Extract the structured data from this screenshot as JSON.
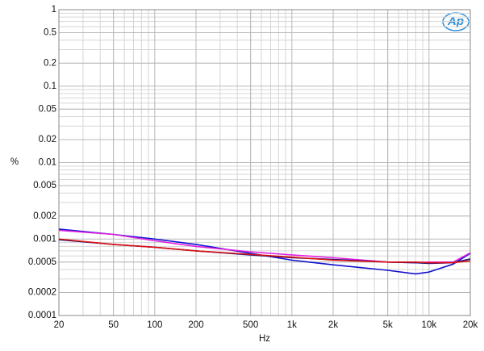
{
  "chart_data": {
    "type": "line",
    "logo": "Ap",
    "xlabel": "Hz",
    "ylabel": "%",
    "xscale": "log",
    "yscale": "log",
    "grid": true,
    "minor_grid": true,
    "xlim": [
      20,
      20000
    ],
    "xticks": [
      20,
      50,
      100,
      200,
      500,
      {
        "value": 1000,
        "label": "1k"
      },
      {
        "value": 2000,
        "label": "2k"
      },
      {
        "value": 5000,
        "label": "5k"
      },
      {
        "value": 10000,
        "label": "10k"
      },
      {
        "value": 20000,
        "label": "20k"
      }
    ],
    "ylim": [
      0.0001,
      1
    ],
    "yticks": [
      1,
      0.5,
      0.2,
      0.1,
      0.05,
      0.02,
      0.01,
      0.005,
      0.002,
      0.001,
      0.0005,
      0.0002,
      0.0001
    ],
    "x": [
      20,
      50,
      100,
      200,
      500,
      1000,
      2000,
      5000,
      8000,
      10000,
      15000,
      20000
    ],
    "series": [
      {
        "color": "#1010d0",
        "values": [
          0.00135,
          0.00115,
          0.001,
          0.00085,
          0.00065,
          0.00053,
          0.00046,
          0.00039,
          0.00035,
          0.00037,
          0.00047,
          0.00065
        ]
      },
      {
        "color": "#e020e0",
        "values": [
          0.0013,
          0.00115,
          0.00095,
          0.0008,
          0.00068,
          0.00062,
          0.00057,
          0.0005,
          0.00049,
          0.0005,
          0.0005,
          0.00066
        ]
      },
      {
        "color": "#101080",
        "values": [
          0.00098,
          0.00085,
          0.00078,
          0.0007,
          0.00062,
          0.00057,
          0.00054,
          0.0005,
          0.00049,
          0.00048,
          0.00049,
          0.00055
        ]
      },
      {
        "color": "#e01010",
        "values": [
          0.001,
          0.00085,
          0.00078,
          0.0007,
          0.00063,
          0.00058,
          0.00053,
          0.0005,
          0.0005,
          0.00049,
          0.00049,
          0.00052
        ]
      }
    ]
  }
}
